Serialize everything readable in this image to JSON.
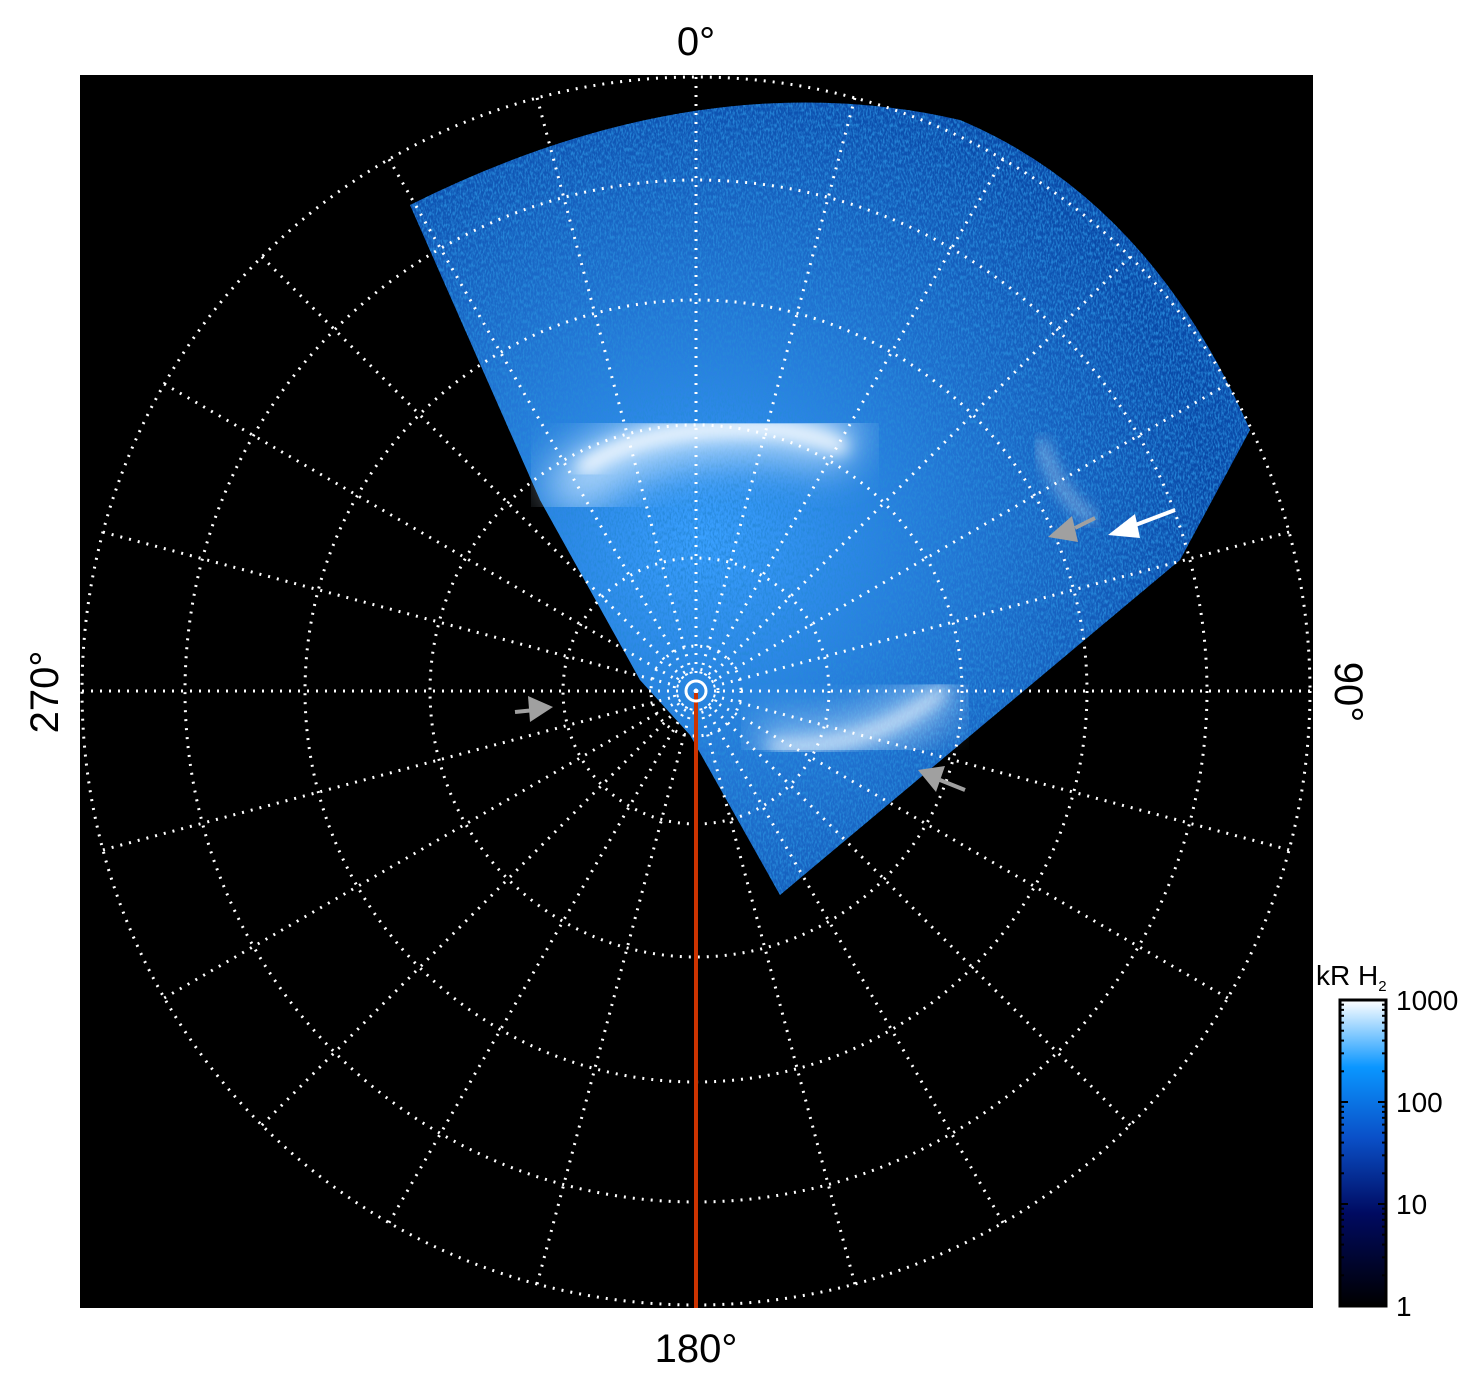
{
  "chart_data": {
    "type": "heatmap",
    "projection": "polar",
    "angle_labels": [
      "0°",
      "90°",
      "180°",
      "270°"
    ],
    "angular_grid_step_deg": 15,
    "radial_grid_step_deg": 10,
    "grid": true,
    "background_color": "#000000",
    "grid_color": "#ffffff",
    "meridian_line_color": "#cc3300",
    "colorbar": {
      "label": "kR H",
      "label_subscript": "2",
      "scale": "log",
      "range": [
        1,
        1000
      ],
      "ticks": [
        "1",
        "10",
        "100",
        "1000"
      ],
      "colors": [
        "#000000",
        "#000a60",
        "#0a50c8",
        "#0a96ff",
        "#ffffff"
      ],
      "placement": "bottom-right"
    },
    "arrows": [
      {
        "color": "#ffffff"
      },
      {
        "color": "#a0a0a0"
      },
      {
        "color": "#a0a0a0"
      },
      {
        "color": "#a0a0a0"
      }
    ]
  }
}
